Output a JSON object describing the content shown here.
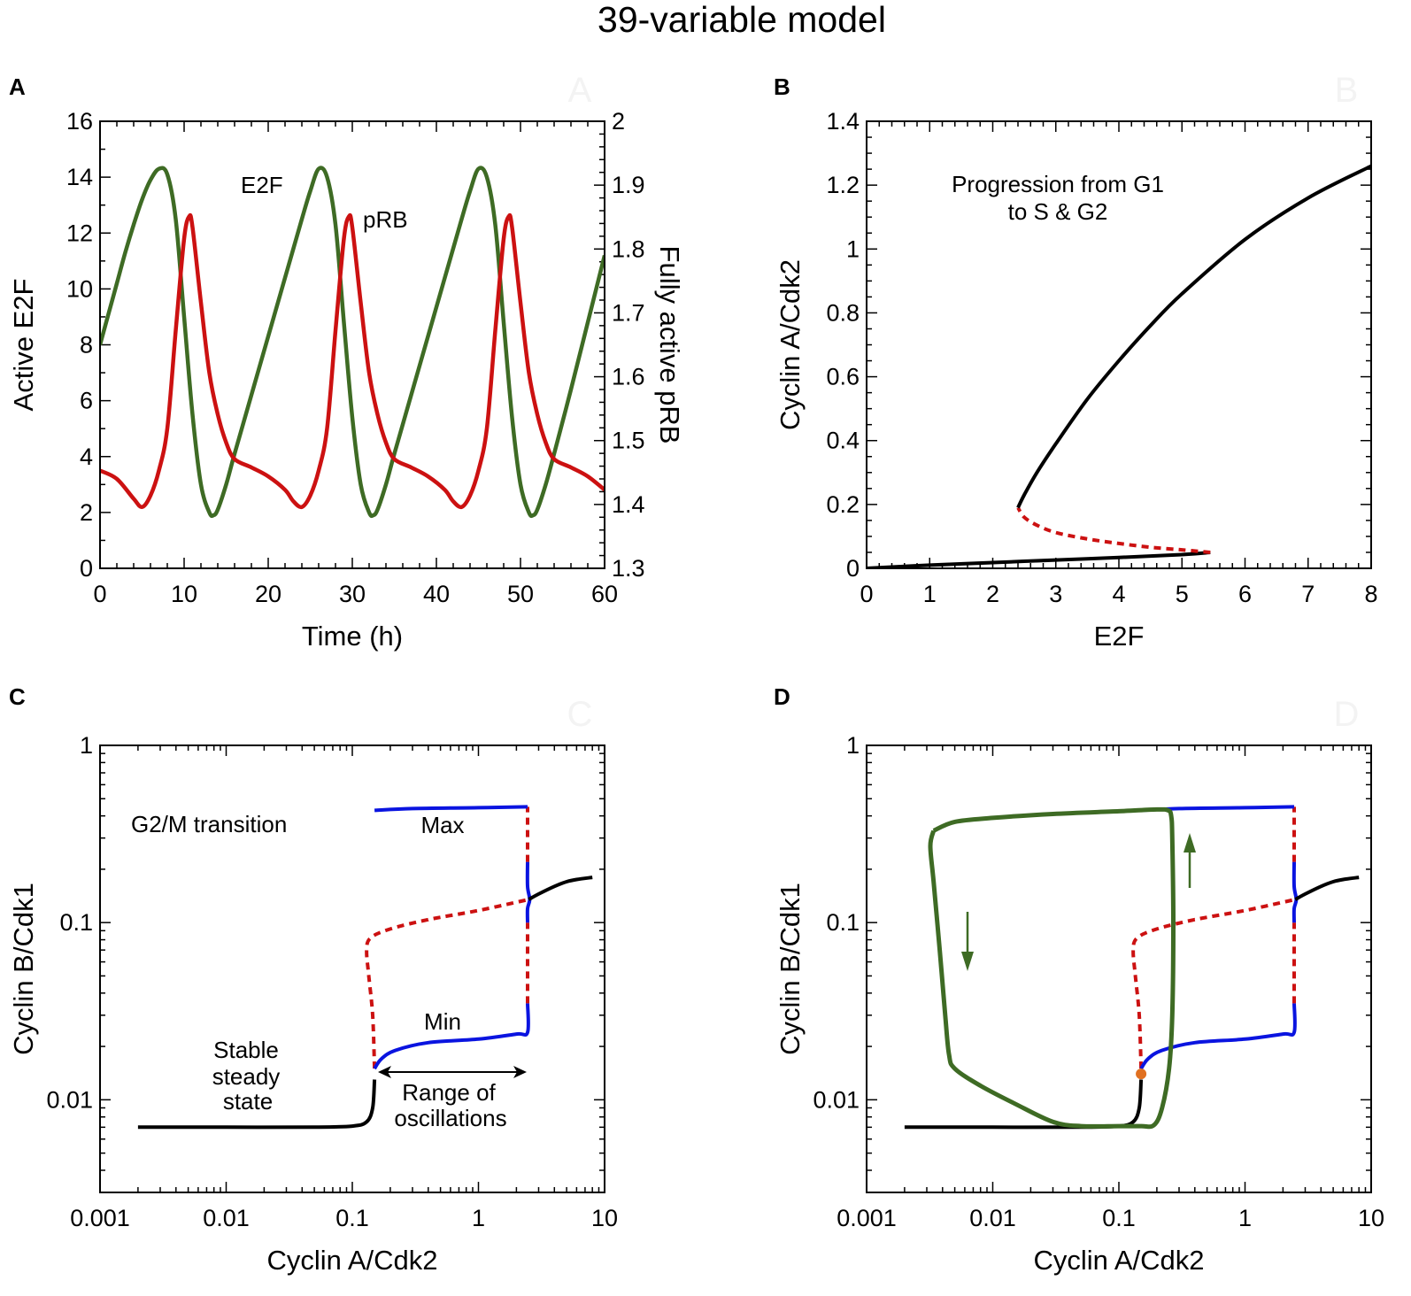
{
  "figure_title": "39-variable model",
  "colors": {
    "e2f_green": "#3e6b24",
    "prb_red": "#cc1111",
    "stable_black": "#000000",
    "unstable_red": "#cc1111",
    "oscillation_blue": "#0a14e0",
    "trajectory_green": "#3e6b24",
    "marker_orange": "#e07020"
  },
  "chart_data": [
    {
      "panel": "A",
      "watermark": "A",
      "type": "line",
      "xlabel": "Time (h)",
      "ylabel": "Active E2F",
      "ylabel_right": "Fully active pRB",
      "xlim": [
        0,
        60
      ],
      "ylim": [
        0,
        16
      ],
      "ylim_right": [
        1.3,
        2
      ],
      "xticks": [
        "0",
        "10",
        "20",
        "30",
        "40",
        "50",
        "60"
      ],
      "yticks": [
        "0",
        "2",
        "4",
        "6",
        "8",
        "10",
        "12",
        "14",
        "16"
      ],
      "yticks_right": [
        "1.3",
        "1.4",
        "1.5",
        "1.6",
        "1.7",
        "1.8",
        "1.9",
        "2"
      ],
      "annotations": [
        "E2F",
        "pRB"
      ],
      "series": [
        {
          "name": "E2F",
          "axis": "left",
          "color": "#3e6b24",
          "x": [
            0,
            1,
            2,
            3,
            4,
            5,
            6,
            7,
            8,
            9,
            10,
            11,
            12,
            13,
            13.5,
            14,
            15,
            16,
            18,
            20,
            22,
            24,
            25,
            26,
            27,
            28,
            29,
            30,
            31,
            32,
            32.5,
            33,
            34,
            35,
            37,
            39,
            41,
            43,
            44,
            45,
            46,
            47,
            48,
            49,
            50,
            51,
            51.5,
            52,
            53,
            54,
            56,
            58,
            60
          ],
          "y": [
            8,
            9.1,
            10.2,
            11.3,
            12.3,
            13.2,
            13.9,
            14.3,
            14.1,
            12.5,
            9,
            5.5,
            3,
            2,
            1.9,
            2.1,
            3,
            4.1,
            6.2,
            8.3,
            10.4,
            12.5,
            13.5,
            14.3,
            14,
            12.3,
            8.8,
            5.4,
            3,
            2,
            1.9,
            2.1,
            3,
            4.1,
            6.2,
            8.3,
            10.4,
            12.5,
            13.5,
            14.3,
            14,
            12.3,
            8.8,
            5.4,
            3,
            2,
            1.9,
            2.1,
            3,
            4.1,
            6.4,
            8.8,
            11.2
          ]
        },
        {
          "name": "pRB",
          "axis": "right",
          "color": "#cc1111",
          "x": [
            0,
            2,
            4,
            5,
            6,
            7,
            8,
            9,
            10,
            10.6,
            11,
            12,
            13,
            14,
            15,
            16,
            18,
            20,
            22,
            23,
            24,
            25,
            26,
            27,
            28,
            29,
            29.6,
            30,
            31,
            32,
            33,
            34,
            35,
            37,
            39,
            41,
            42,
            43,
            44,
            45,
            46,
            47,
            48,
            48.6,
            49,
            50,
            51,
            52,
            53,
            54,
            56,
            58,
            60
          ],
          "y": [
            1.453,
            1.44,
            1.409,
            1.396,
            1.414,
            1.453,
            1.519,
            1.672,
            1.816,
            1.851,
            1.834,
            1.716,
            1.606,
            1.541,
            1.497,
            1.471,
            1.458,
            1.444,
            1.423,
            1.405,
            1.396,
            1.414,
            1.453,
            1.519,
            1.672,
            1.816,
            1.851,
            1.834,
            1.716,
            1.606,
            1.541,
            1.497,
            1.471,
            1.458,
            1.444,
            1.423,
            1.405,
            1.396,
            1.414,
            1.453,
            1.519,
            1.672,
            1.816,
            1.851,
            1.834,
            1.716,
            1.606,
            1.541,
            1.497,
            1.471,
            1.458,
            1.444,
            1.423
          ]
        }
      ]
    },
    {
      "panel": "B",
      "watermark": "B",
      "type": "line",
      "xlabel": "E2F",
      "ylabel": "Cyclin A/Cdk2",
      "xlim": [
        0,
        8
      ],
      "ylim": [
        0,
        1.4
      ],
      "xticks": [
        "0",
        "1",
        "2",
        "3",
        "4",
        "5",
        "6",
        "7",
        "8"
      ],
      "yticks": [
        "0",
        "0.2",
        "0.4",
        "0.6",
        "0.8",
        "1",
        "1.2",
        "1.4"
      ],
      "annotations": [
        "Progression from G1",
        "to S & G2"
      ],
      "series": [
        {
          "style": "stable",
          "color": "#000000",
          "x": [
            0,
            1,
            2,
            3,
            4,
            5,
            5.45
          ],
          "y": [
            0,
            0.01,
            0.018,
            0.026,
            0.034,
            0.043,
            0.05
          ]
        },
        {
          "style": "unstable",
          "color": "#cc1111",
          "x": [
            5.45,
            5,
            4.5,
            4,
            3.5,
            3,
            2.7,
            2.5,
            2.4
          ],
          "y": [
            0.05,
            0.058,
            0.066,
            0.078,
            0.092,
            0.112,
            0.135,
            0.16,
            0.19
          ]
        },
        {
          "style": "stable",
          "color": "#000000",
          "x": [
            2.4,
            2.5,
            2.7,
            3,
            3.5,
            4,
            4.5,
            5,
            6,
            7,
            8
          ],
          "y": [
            0.19,
            0.23,
            0.3,
            0.39,
            0.53,
            0.65,
            0.76,
            0.86,
            1.03,
            1.16,
            1.26
          ]
        }
      ]
    },
    {
      "panel": "C",
      "watermark": "C",
      "type": "line",
      "xscale": "log",
      "yscale": "log",
      "xlabel": "Cyclin A/Cdk2",
      "ylabel": "Cyclin B/Cdk1",
      "xlim": [
        0.001,
        10
      ],
      "ylim": [
        0.003,
        1
      ],
      "xticks": [
        "0.001",
        "0.01",
        "0.1",
        "1",
        "10"
      ],
      "yticks": [
        "0.01",
        "0.1",
        "1"
      ],
      "annotations": [
        "G2/M transition",
        "Max",
        "Min",
        "Stable",
        "steady",
        "state",
        "Range of",
        "oscillations"
      ],
      "series": [
        {
          "style": "stable",
          "color": "#000000",
          "x": [
            0.002,
            0.01,
            0.05,
            0.1,
            0.13,
            0.145,
            0.15
          ],
          "y": [
            0.007,
            0.007,
            0.007,
            0.0071,
            0.0075,
            0.009,
            0.013
          ]
        },
        {
          "style": "unstable",
          "color": "#cc1111",
          "x": [
            0.15,
            0.145,
            0.135,
            0.13,
            0.14,
            0.2,
            0.4,
            1,
            2.5
          ],
          "y": [
            0.015,
            0.03,
            0.05,
            0.07,
            0.082,
            0.092,
            0.104,
            0.117,
            0.135
          ]
        },
        {
          "style": "oscillation-min",
          "color": "#0a14e0",
          "x": [
            0.15,
            0.17,
            0.22,
            0.4,
            1,
            2,
            2.45,
            2.45
          ],
          "y": [
            0.015,
            0.017,
            0.019,
            0.021,
            0.022,
            0.0235,
            0.024,
            0.035
          ]
        },
        {
          "style": "unstable",
          "color": "#cc1111",
          "x": [
            2.45,
            2.45
          ],
          "y": [
            0.035,
            0.1
          ]
        },
        {
          "style": "oscillation",
          "color": "#0a14e0",
          "x": [
            2.45,
            2.45,
            2.55,
            2.45,
            2.45
          ],
          "y": [
            0.1,
            0.12,
            0.135,
            0.16,
            0.22
          ]
        },
        {
          "style": "unstable",
          "color": "#cc1111",
          "x": [
            2.45,
            2.45
          ],
          "y": [
            0.22,
            0.45
          ]
        },
        {
          "style": "oscillation-max",
          "color": "#0a14e0",
          "x": [
            0.15,
            0.3,
            1,
            2.45
          ],
          "y": [
            0.43,
            0.44,
            0.445,
            0.45
          ]
        },
        {
          "style": "stable",
          "color": "#000000",
          "x": [
            2.5,
            3,
            4,
            5,
            6,
            8
          ],
          "y": [
            0.135,
            0.145,
            0.16,
            0.17,
            0.175,
            0.18
          ]
        }
      ]
    },
    {
      "panel": "D",
      "watermark": "D",
      "type": "line",
      "xscale": "log",
      "yscale": "log",
      "xlabel": "Cyclin A/Cdk2",
      "ylabel": "Cyclin B/Cdk1",
      "xlim": [
        0.001,
        10
      ],
      "ylim": [
        0.003,
        1
      ],
      "xticks": [
        "0.001",
        "0.01",
        "0.1",
        "1",
        "10"
      ],
      "yticks": [
        "0.01",
        "0.1",
        "1"
      ],
      "marker": {
        "x": 0.15,
        "y": 0.014,
        "color": "#e07020"
      },
      "series": [
        {
          "style": "stable",
          "color": "#000000",
          "x": [
            0.002,
            0.01,
            0.05,
            0.1,
            0.13,
            0.145,
            0.15
          ],
          "y": [
            0.007,
            0.007,
            0.007,
            0.0071,
            0.0075,
            0.009,
            0.013
          ]
        },
        {
          "style": "unstable",
          "color": "#cc1111",
          "x": [
            0.15,
            0.145,
            0.135,
            0.13,
            0.14,
            0.2,
            0.4,
            1,
            2.5
          ],
          "y": [
            0.015,
            0.03,
            0.05,
            0.07,
            0.082,
            0.092,
            0.104,
            0.117,
            0.135
          ]
        },
        {
          "style": "oscillation-min",
          "color": "#0a14e0",
          "x": [
            0.15,
            0.17,
            0.22,
            0.4,
            1,
            2,
            2.45,
            2.45
          ],
          "y": [
            0.015,
            0.017,
            0.019,
            0.021,
            0.022,
            0.0235,
            0.024,
            0.035
          ]
        },
        {
          "style": "unstable",
          "color": "#cc1111",
          "x": [
            2.45,
            2.45
          ],
          "y": [
            0.035,
            0.1
          ]
        },
        {
          "style": "oscillation",
          "color": "#0a14e0",
          "x": [
            2.45,
            2.45,
            2.55,
            2.45,
            2.45
          ],
          "y": [
            0.1,
            0.12,
            0.135,
            0.16,
            0.22
          ]
        },
        {
          "style": "unstable",
          "color": "#cc1111",
          "x": [
            2.45,
            2.45
          ],
          "y": [
            0.22,
            0.45
          ]
        },
        {
          "style": "oscillation-max",
          "color": "#0a14e0",
          "x": [
            0.15,
            0.3,
            1,
            2.45
          ],
          "y": [
            0.43,
            0.44,
            0.445,
            0.45
          ]
        },
        {
          "style": "stable",
          "color": "#000000",
          "x": [
            2.5,
            3,
            4,
            5,
            6,
            8
          ],
          "y": [
            0.135,
            0.145,
            0.16,
            0.17,
            0.175,
            0.18
          ]
        },
        {
          "style": "trajectory",
          "color": "#3e6b24",
          "x": [
            0.0034,
            0.005,
            0.01,
            0.03,
            0.1,
            0.2,
            0.245,
            0.26,
            0.265,
            0.27,
            0.265,
            0.25,
            0.22,
            0.19,
            0.15,
            0.1,
            0.05,
            0.03,
            0.015,
            0.008,
            0.005,
            0.0045,
            0.0042,
            0.0038,
            0.0034,
            0.0032,
            0.0034
          ],
          "y": [
            0.33,
            0.37,
            0.39,
            0.41,
            0.425,
            0.435,
            0.43,
            0.4,
            0.3,
            0.1,
            0.03,
            0.015,
            0.009,
            0.0072,
            0.0071,
            0.0071,
            0.0071,
            0.0075,
            0.0095,
            0.012,
            0.015,
            0.018,
            0.03,
            0.07,
            0.17,
            0.27,
            0.33
          ]
        }
      ]
    }
  ]
}
